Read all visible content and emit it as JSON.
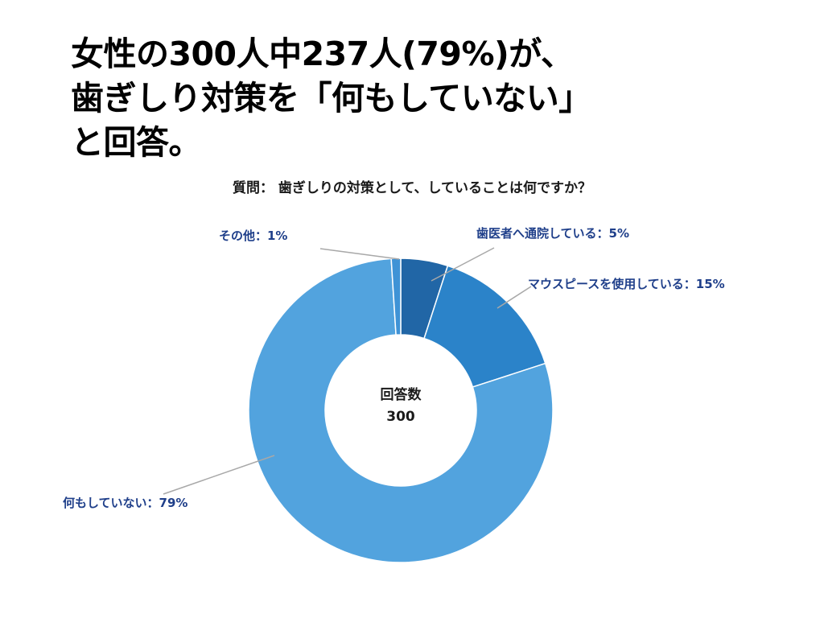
{
  "headline": {
    "line1": "女性の300人中237人(79%)が、",
    "line2": "歯ぎしり対策を「何もしていない」",
    "line3": "と回答。"
  },
  "chart_data": {
    "type": "pie",
    "title": "質問： 歯ぎしりの対策として、していることは何ですか？",
    "center_label": "回答数",
    "center_value": "300",
    "slices": [
      {
        "label": "歯医者へ通院している：5%",
        "value": 5,
        "color": "#2166a6"
      },
      {
        "label": "マウスピースを使用している：15%",
        "value": 15,
        "color": "#2b83c9"
      },
      {
        "label": "何もしていない：79%",
        "value": 79,
        "color": "#52a3de"
      },
      {
        "label": "その他：1%",
        "value": 1,
        "color": "#3f93d6"
      }
    ]
  }
}
